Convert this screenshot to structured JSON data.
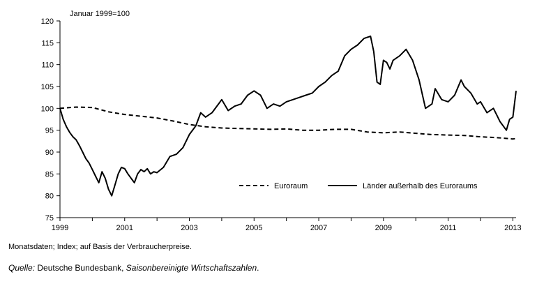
{
  "chart_data": {
    "type": "line",
    "subtitle": "Januar 1999=100",
    "xlabel": "",
    "ylabel": "",
    "ylim": [
      75,
      120
    ],
    "xlim": [
      1999.0,
      2013.1
    ],
    "y_ticks": [
      75,
      80,
      85,
      90,
      95,
      100,
      105,
      110,
      115,
      120
    ],
    "x_ticks": [
      "1999",
      "2001",
      "2003",
      "2005",
      "2007",
      "2009",
      "2011",
      "2013"
    ],
    "x_tick_values": [
      1999,
      2001,
      2003,
      2005,
      2007,
      2009,
      2011,
      2013
    ],
    "grid": false,
    "legend_position": "bottom-right",
    "series": [
      {
        "name": "Euroraum",
        "style": "dashed",
        "color": "#000000",
        "x": [
          1999.0,
          1999.5,
          2000.0,
          2000.5,
          2001.0,
          2001.5,
          2002.0,
          2002.5,
          2003.0,
          2003.5,
          2004.0,
          2004.5,
          2005.0,
          2005.5,
          2006.0,
          2006.5,
          2007.0,
          2007.5,
          2008.0,
          2008.5,
          2009.0,
          2009.5,
          2010.0,
          2010.5,
          2011.0,
          2011.5,
          2012.0,
          2012.5,
          2013.0,
          2013.1
        ],
        "values": [
          100.0,
          100.3,
          100.2,
          99.2,
          98.6,
          98.2,
          97.8,
          97.1,
          96.3,
          95.8,
          95.5,
          95.4,
          95.3,
          95.2,
          95.3,
          95.0,
          95.0,
          95.2,
          95.2,
          94.6,
          94.4,
          94.6,
          94.3,
          94.0,
          93.9,
          93.8,
          93.5,
          93.3,
          93.0,
          93.1
        ]
      },
      {
        "name": "Länder außerhalb des Euroraums",
        "style": "solid",
        "color": "#000000",
        "x": [
          1999.0,
          1999.1,
          1999.2,
          1999.3,
          1999.4,
          1999.5,
          1999.6,
          1999.7,
          1999.8,
          1999.9,
          2000.0,
          2000.1,
          2000.2,
          2000.3,
          2000.4,
          2000.5,
          2000.6,
          2000.7,
          2000.8,
          2000.9,
          2001.0,
          2001.1,
          2001.2,
          2001.3,
          2001.4,
          2001.5,
          2001.6,
          2001.7,
          2001.8,
          2001.9,
          2002.0,
          2002.2,
          2002.4,
          2002.6,
          2002.8,
          2003.0,
          2003.2,
          2003.35,
          2003.5,
          2003.7,
          2003.9,
          2004.0,
          2004.2,
          2004.4,
          2004.6,
          2004.8,
          2005.0,
          2005.2,
          2005.4,
          2005.6,
          2005.8,
          2006.0,
          2006.2,
          2006.4,
          2006.6,
          2006.8,
          2007.0,
          2007.2,
          2007.4,
          2007.6,
          2007.8,
          2008.0,
          2008.2,
          2008.4,
          2008.6,
          2008.7,
          2008.8,
          2008.9,
          2009.0,
          2009.1,
          2009.2,
          2009.3,
          2009.5,
          2009.7,
          2009.9,
          2010.1,
          2010.3,
          2010.5,
          2010.6,
          2010.8,
          2011.0,
          2011.2,
          2011.4,
          2011.5,
          2011.7,
          2011.9,
          2012.0,
          2012.2,
          2012.4,
          2012.5,
          2012.6,
          2012.8,
          2012.9,
          2013.0,
          2013.1
        ],
        "values": [
          100.0,
          97.5,
          95.8,
          94.5,
          93.5,
          92.8,
          91.5,
          90.0,
          88.5,
          87.5,
          86.0,
          84.5,
          83.0,
          85.5,
          84.0,
          81.5,
          80.0,
          82.5,
          85.0,
          86.5,
          86.2,
          85.0,
          84.0,
          83.0,
          85.0,
          86.0,
          85.5,
          86.2,
          85.0,
          85.5,
          85.3,
          86.5,
          89.0,
          89.5,
          91.0,
          94.0,
          96.0,
          99.0,
          98.0,
          99.0,
          101.0,
          102.0,
          99.5,
          100.5,
          101.0,
          103.0,
          104.0,
          103.0,
          100.0,
          101.0,
          100.5,
          101.5,
          102.0,
          102.5,
          103.0,
          103.5,
          105.0,
          106.0,
          107.5,
          108.5,
          112.0,
          113.5,
          114.5,
          116.0,
          116.5,
          113.0,
          106.0,
          105.5,
          111.0,
          110.5,
          109.0,
          111.0,
          112.0,
          113.5,
          111.0,
          106.5,
          100.0,
          101.0,
          104.5,
          102.0,
          101.5,
          103.0,
          106.5,
          105.0,
          103.5,
          101.0,
          101.5,
          99.0,
          100.0,
          98.5,
          97.0,
          95.0,
          97.5,
          98.0,
          104.0
        ]
      }
    ]
  },
  "footnote": "Monatsdaten; Index; auf Basis der Verbraucherpreise.",
  "source": {
    "label": "Quelle:",
    "text": " Deutsche Bundesbank, ",
    "publication": "Saisonbereinigte Wirtschaftszahlen",
    "end": "."
  }
}
